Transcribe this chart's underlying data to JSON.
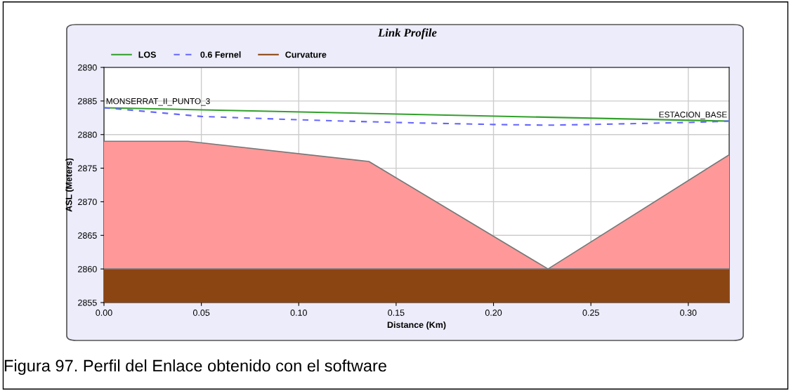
{
  "chart_data": {
    "type": "line",
    "title": "Link Profile",
    "xlabel": "Distance (Km)",
    "ylabel": "ASL (Meters)",
    "xlim": [
      0,
      0.321
    ],
    "xticks": [
      {
        "value": 0,
        "label": "0.00"
      },
      {
        "value": 0.05,
        "label": "0.05"
      },
      {
        "value": 0.1,
        "label": "0.10"
      },
      {
        "value": 0.15,
        "label": "0.15"
      },
      {
        "value": 0.2,
        "label": "0.20"
      },
      {
        "value": 0.25,
        "label": "0.25"
      },
      {
        "value": 0.3,
        "label": "0.30"
      }
    ],
    "ylim": [
      2855,
      2890
    ],
    "yticks": [
      2855,
      2860,
      2865,
      2870,
      2875,
      2880,
      2885,
      2890
    ],
    "grid": true,
    "legend": "top left",
    "series": [
      {
        "name": "LOS",
        "color": "#33a02c",
        "x": [
          0,
          0.321
        ],
        "values": [
          2884,
          2882
        ]
      },
      {
        "name": "0.6 Fernel",
        "color": "#6666ff",
        "line_style": "dashed",
        "x": [
          0,
          0.05,
          0.1,
          0.15,
          0.2,
          0.228,
          0.25,
          0.3,
          0.321
        ],
        "values": [
          2884,
          2882.7,
          2882.2,
          2881.8,
          2881.5,
          2881.4,
          2881.5,
          2881.8,
          2882
        ]
      },
      {
        "type": "area",
        "name": "Curvature",
        "color": "#8b4513",
        "x": [
          0,
          0.321
        ],
        "values": [
          2860,
          2860
        ]
      },
      {
        "type": "area",
        "color": "#ff9999",
        "x": [
          0,
          0.043,
          0.136,
          0.228,
          0.321
        ],
        "values": [
          2879,
          2879,
          2876,
          2860,
          2877
        ]
      }
    ],
    "annotations": [
      {
        "text": "MONSERRAT_II_PUNTO_3",
        "x": 0,
        "y": 2884
      },
      {
        "text": "ESTACION_BASE",
        "x": 0.321,
        "y": 2882
      },
      "Figura 97. Perfil del Enlace obtenido con el software"
    ]
  }
}
